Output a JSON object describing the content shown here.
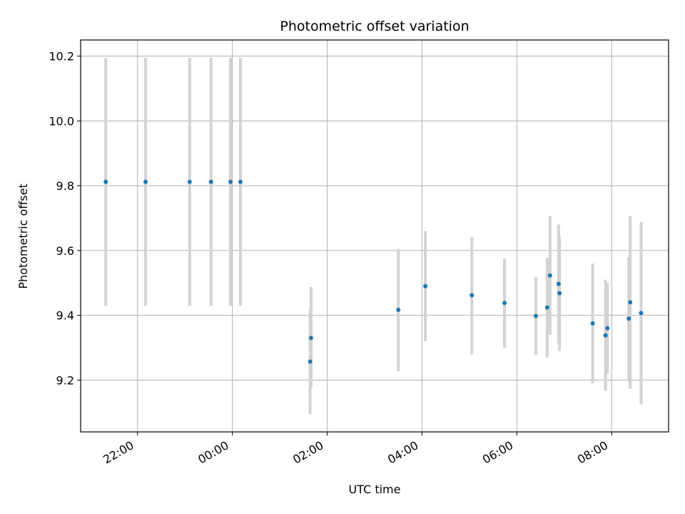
{
  "chart_data": {
    "type": "scatter",
    "title": "Photometric offset variation",
    "xlabel": "UTC time",
    "ylabel": "Photometric offset",
    "x_unit": "hours",
    "xlim": [
      -3.2,
      9.2
    ],
    "ylim": [
      9.04,
      10.25
    ],
    "x_ticks": [
      {
        "value": -2,
        "label": "22:00"
      },
      {
        "value": 0,
        "label": "00:00"
      },
      {
        "value": 2,
        "label": "02:00"
      },
      {
        "value": 4,
        "label": "04:00"
      },
      {
        "value": 6,
        "label": "06:00"
      },
      {
        "value": 8,
        "label": "08:00"
      }
    ],
    "y_ticks": [
      {
        "value": 9.2,
        "label": "9.2"
      },
      {
        "value": 9.4,
        "label": "9.4"
      },
      {
        "value": 9.6,
        "label": "9.6"
      },
      {
        "value": 9.8,
        "label": "9.8"
      },
      {
        "value": 10.0,
        "label": "10.0"
      },
      {
        "value": 10.2,
        "label": "10.2"
      }
    ],
    "grid": true,
    "point_color": "#1f77b4",
    "errorbar_color": "#d3d3d3",
    "points": [
      {
        "x": -2.67,
        "y": 9.812,
        "low": 9.43,
        "high": 10.195
      },
      {
        "x": -1.83,
        "y": 9.812,
        "low": 9.43,
        "high": 10.195
      },
      {
        "x": -0.9,
        "y": 9.812,
        "low": 9.43,
        "high": 10.195
      },
      {
        "x": -0.45,
        "y": 9.812,
        "low": 9.43,
        "high": 10.195
      },
      {
        "x": -0.04,
        "y": 9.812,
        "low": 9.43,
        "high": 10.195
      },
      {
        "x": 0.17,
        "y": 9.812,
        "low": 9.43,
        "high": 10.195
      },
      {
        "x": 1.66,
        "y": 9.33,
        "low": 9.175,
        "high": 9.488
      },
      {
        "x": 1.64,
        "y": 9.257,
        "low": 9.095,
        "high": 9.42
      },
      {
        "x": 3.5,
        "y": 9.417,
        "low": 9.227,
        "high": 9.605
      },
      {
        "x": 4.07,
        "y": 9.49,
        "low": 9.32,
        "high": 9.66
      },
      {
        "x": 5.05,
        "y": 9.462,
        "low": 9.28,
        "high": 9.64
      },
      {
        "x": 5.74,
        "y": 9.438,
        "low": 9.3,
        "high": 9.575
      },
      {
        "x": 6.4,
        "y": 9.398,
        "low": 9.278,
        "high": 9.518
      },
      {
        "x": 6.64,
        "y": 9.424,
        "low": 9.27,
        "high": 9.578
      },
      {
        "x": 6.7,
        "y": 9.523,
        "low": 9.34,
        "high": 9.707
      },
      {
        "x": 6.88,
        "y": 9.497,
        "low": 9.313,
        "high": 9.68
      },
      {
        "x": 6.9,
        "y": 9.468,
        "low": 9.29,
        "high": 9.643
      },
      {
        "x": 7.6,
        "y": 9.375,
        "low": 9.19,
        "high": 9.56
      },
      {
        "x": 7.87,
        "y": 9.338,
        "low": 9.167,
        "high": 9.51
      },
      {
        "x": 7.91,
        "y": 9.36,
        "low": 9.22,
        "high": 9.5
      },
      {
        "x": 8.36,
        "y": 9.39,
        "low": 9.2,
        "high": 9.58
      },
      {
        "x": 8.39,
        "y": 9.44,
        "low": 9.173,
        "high": 9.707
      },
      {
        "x": 8.62,
        "y": 9.407,
        "low": 9.125,
        "high": 9.688
      }
    ]
  }
}
